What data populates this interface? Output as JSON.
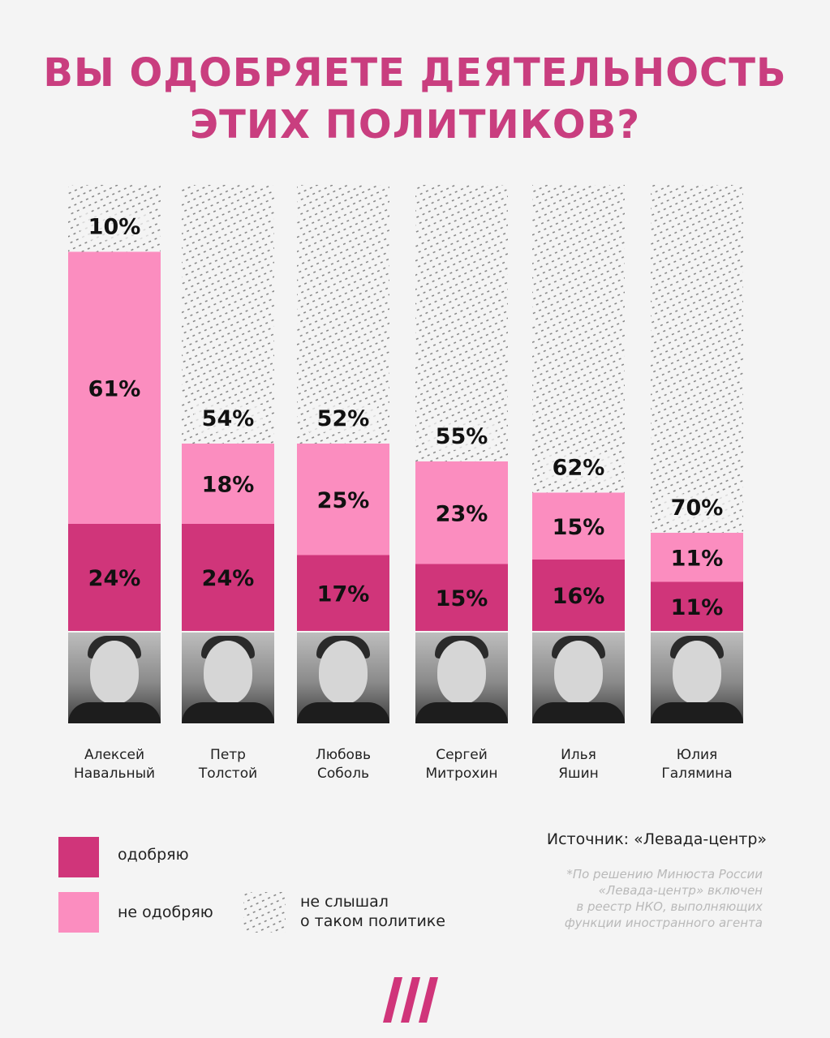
{
  "title": {
    "line1": "ВЫ ОДОБРЯЕТЕ ДЕЯТЕЛЬНОСТЬ",
    "line2": "ЭТИХ ПОЛИТИКОВ?"
  },
  "colors": {
    "title": "#c93e7f",
    "approve": "#d0357a",
    "disapprove": "#fb8dbf",
    "not_heard_pattern": "#777777",
    "background": "#f4f4f4"
  },
  "chart_data": {
    "type": "bar",
    "stacked": true,
    "title": "ВЫ ОДОБРЯЕТЕ ДЕЯТЕЛЬНОСТЬ ЭТИХ ПОЛИТИКОВ?",
    "categories": [
      [
        "Алексей",
        "Навальный"
      ],
      [
        "Петр",
        "Толстой"
      ],
      [
        "Любовь",
        "Соболь"
      ],
      [
        "Сергей",
        "Митрохин"
      ],
      [
        "Илья",
        "Яшин"
      ],
      [
        "Юлия",
        "Галямина"
      ]
    ],
    "series": [
      {
        "name": "одобряю",
        "values": [
          24,
          24,
          17,
          15,
          16,
          11
        ],
        "labels": [
          "24%",
          "24%",
          "17%",
          "15%",
          "16%",
          "11%"
        ]
      },
      {
        "name": "не одобряю",
        "values": [
          61,
          18,
          25,
          23,
          15,
          11
        ],
        "labels": [
          "61%",
          "18%",
          "25%",
          "23%",
          "15%",
          "11%"
        ]
      },
      {
        "name": "не слышал о таком политике",
        "values": [
          10,
          54,
          52,
          55,
          62,
          70
        ],
        "labels": [
          "10%",
          "54%",
          "52%",
          "55%",
          "62%",
          "70%"
        ]
      }
    ],
    "ylim": [
      0,
      100
    ],
    "grid": false,
    "legend": "bottom-left"
  },
  "legend": {
    "approve": "одобряю",
    "disapprove": "не одобряю",
    "not_heard_line1": "не слышал",
    "not_heard_line2": "о таком политике"
  },
  "source": "Источник: «Левада-центр»",
  "note": {
    "line1": "*По решению Минюста России",
    "line2": "«Левада-центр» включен",
    "line3": "в реестр НКО, выполняющих",
    "line4": "функции иностранного агента"
  },
  "logo_icon": "dozhd-logo-icon"
}
